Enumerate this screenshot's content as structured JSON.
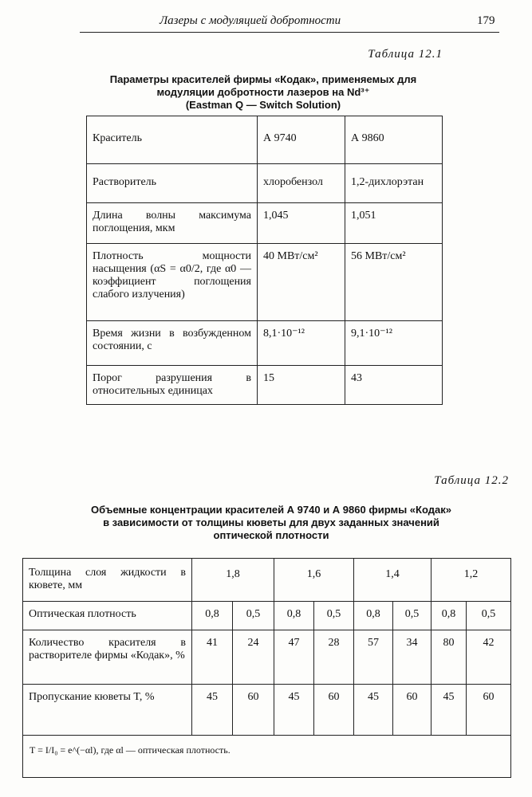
{
  "header": {
    "running_title": "Лазеры с модуляцией добротности",
    "page_number": "179"
  },
  "table1": {
    "label": "Таблица 12.1",
    "caption": [
      "Параметры красителей фирмы «Кодак», применяемых для",
      "модуляции добротности лазеров на Nd³⁺",
      "(Eastman Q — Switch Solution)"
    ],
    "rows": [
      [
        "Краситель",
        "А 9740",
        "А 9860"
      ],
      [
        "Растворитель",
        "хлоробензол",
        "1,2-дихлорэтан"
      ],
      [
        "Длина волны максимума поглощения, мкм",
        "1,045",
        "1,051"
      ],
      [
        "Плотность мощности насыщения (αS = α0/2, где α0 — коэффициент поглощения слабого излучения)",
        "40 МВт/см²",
        "56 МВт/см²"
      ],
      [
        "Время жизни в возбужденном состоянии, с",
        "8,1·10⁻¹²",
        "9,1·10⁻¹²"
      ],
      [
        "Порог разрушения в относительных единицах",
        "15",
        "43"
      ]
    ]
  },
  "table2": {
    "label": "Таблица 12.2",
    "caption": [
      "Объемные концентрации красителей А 9740 и А 9860 фирмы «Кодак»",
      "в зависимости от толщины кюветы для двух заданных значений",
      "оптической плотности"
    ],
    "thickness_label": "Толщина слоя жидкости в кювете, мм",
    "thickness": [
      "1,8",
      "1,6",
      "1,4",
      "1,2"
    ],
    "rows": [
      {
        "label": "Оптическая плотность",
        "values": [
          "0,8",
          "0,5",
          "0,8",
          "0,5",
          "0,8",
          "0,5",
          "0,8",
          "0,5"
        ]
      },
      {
        "label": "Количество красителя в растворителе фирмы «Кодак», %",
        "values": [
          "41",
          "24",
          "47",
          "28",
          "57",
          "34",
          "80",
          "42"
        ]
      },
      {
        "label": "Пропускание кюветы T, %",
        "values": [
          "45",
          "60",
          "45",
          "60",
          "45",
          "60",
          "45",
          "60"
        ]
      }
    ],
    "footnote": "T = I/I₀ = e^(−αl), где αl — оптическая плотность."
  }
}
